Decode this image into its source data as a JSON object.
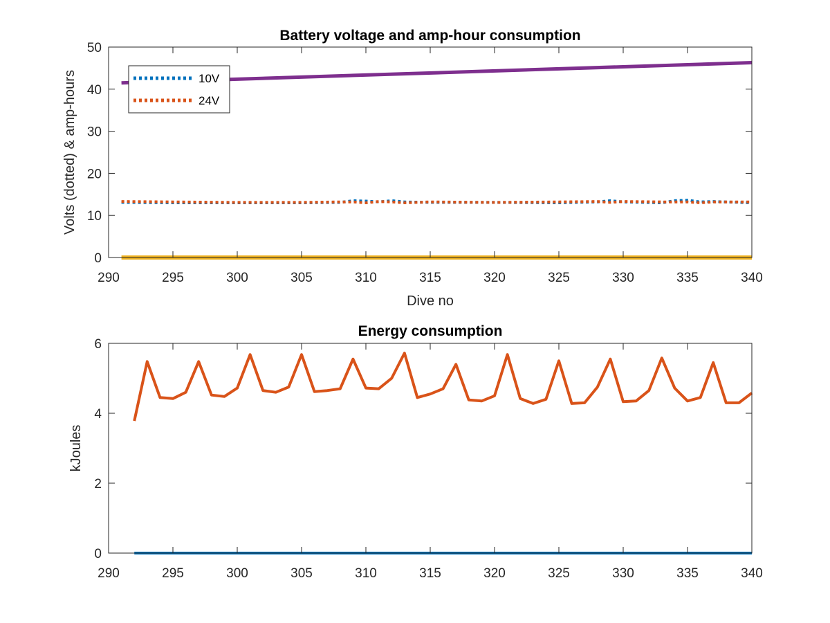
{
  "chart_data": [
    {
      "type": "line",
      "title": "Battery voltage and amp-hour consumption",
      "xlabel": "Dive no",
      "ylabel": "Volts (dotted) & amp-hours",
      "xlim": [
        290,
        340
      ],
      "ylim": [
        0,
        50
      ],
      "xticks": [
        290,
        295,
        300,
        305,
        310,
        315,
        320,
        325,
        330,
        335,
        340
      ],
      "yticks": [
        0,
        10,
        20,
        30,
        40,
        50
      ],
      "grid": false,
      "legend": {
        "position": "top-left",
        "entries": [
          "10V",
          "24V"
        ]
      },
      "series": [
        {
          "name": "10V",
          "style": "dotted",
          "color": "#0072BD",
          "x": [
            291,
            295,
            300,
            305,
            308,
            309,
            310,
            311,
            312,
            313,
            315,
            320,
            325,
            328,
            329,
            330,
            333,
            334,
            335,
            336,
            337,
            340
          ],
          "y": [
            13.1,
            13.0,
            13.0,
            13.0,
            13.1,
            13.5,
            13.4,
            13.2,
            13.5,
            13.2,
            13.1,
            13.1,
            13.0,
            13.2,
            13.5,
            13.2,
            13.0,
            13.5,
            13.6,
            13.2,
            13.3,
            13.0
          ]
        },
        {
          "name": "24V",
          "style": "dotted",
          "color": "#D95319",
          "x": [
            291,
            295,
            300,
            305,
            308,
            309,
            310,
            311,
            312,
            313,
            315,
            320,
            325,
            328,
            329,
            330,
            333,
            334,
            335,
            336,
            337,
            340
          ],
          "y": [
            13.3,
            13.2,
            13.1,
            13.1,
            13.2,
            13.2,
            13.0,
            13.3,
            13.2,
            13.0,
            13.2,
            13.1,
            13.2,
            13.3,
            13.1,
            13.3,
            13.2,
            13.2,
            13.2,
            13.0,
            13.2,
            13.2
          ]
        },
        {
          "style": "solid",
          "color": "#EDB120",
          "x": [
            291,
            340
          ],
          "y": [
            0,
            0
          ]
        },
        {
          "style": "solid",
          "color": "#7E2F8E",
          "x": [
            291,
            340
          ],
          "y": [
            41.5,
            46.3
          ]
        }
      ]
    },
    {
      "type": "line",
      "title": "Energy consumption",
      "xlabel": "",
      "ylabel": "kJoules",
      "xlim": [
        290,
        340
      ],
      "ylim": [
        0,
        6
      ],
      "xticks": [
        290,
        295,
        300,
        305,
        310,
        315,
        320,
        325,
        330,
        335,
        340
      ],
      "yticks": [
        0,
        2,
        4,
        6
      ],
      "grid": false,
      "series": [
        {
          "style": "solid",
          "color": "#D95319",
          "x": [
            292,
            293,
            294,
            295,
            296,
            297,
            298,
            299,
            300,
            301,
            302,
            303,
            304,
            305,
            306,
            307,
            308,
            309,
            310,
            311,
            312,
            313,
            314,
            315,
            316,
            317,
            318,
            319,
            320,
            321,
            322,
            323,
            324,
            325,
            326,
            327,
            328,
            329,
            330,
            331,
            332,
            333,
            334,
            335,
            336,
            337,
            338,
            339,
            340
          ],
          "y": [
            3.78,
            5.48,
            4.45,
            4.42,
            4.6,
            5.48,
            4.52,
            4.48,
            4.72,
            5.68,
            4.65,
            4.6,
            4.75,
            5.68,
            4.62,
            4.65,
            4.7,
            5.55,
            4.72,
            4.7,
            5.0,
            5.72,
            4.45,
            4.55,
            4.7,
            5.4,
            4.38,
            4.35,
            4.5,
            5.68,
            4.42,
            4.28,
            4.4,
            5.5,
            4.28,
            4.3,
            4.75,
            5.55,
            4.33,
            4.35,
            4.65,
            5.58,
            4.72,
            4.35,
            4.45,
            5.45,
            4.3,
            4.3,
            4.58
          ]
        },
        {
          "style": "solid",
          "color": "#0072BD",
          "x": [
            292,
            340
          ],
          "y": [
            0,
            0
          ]
        }
      ]
    }
  ]
}
